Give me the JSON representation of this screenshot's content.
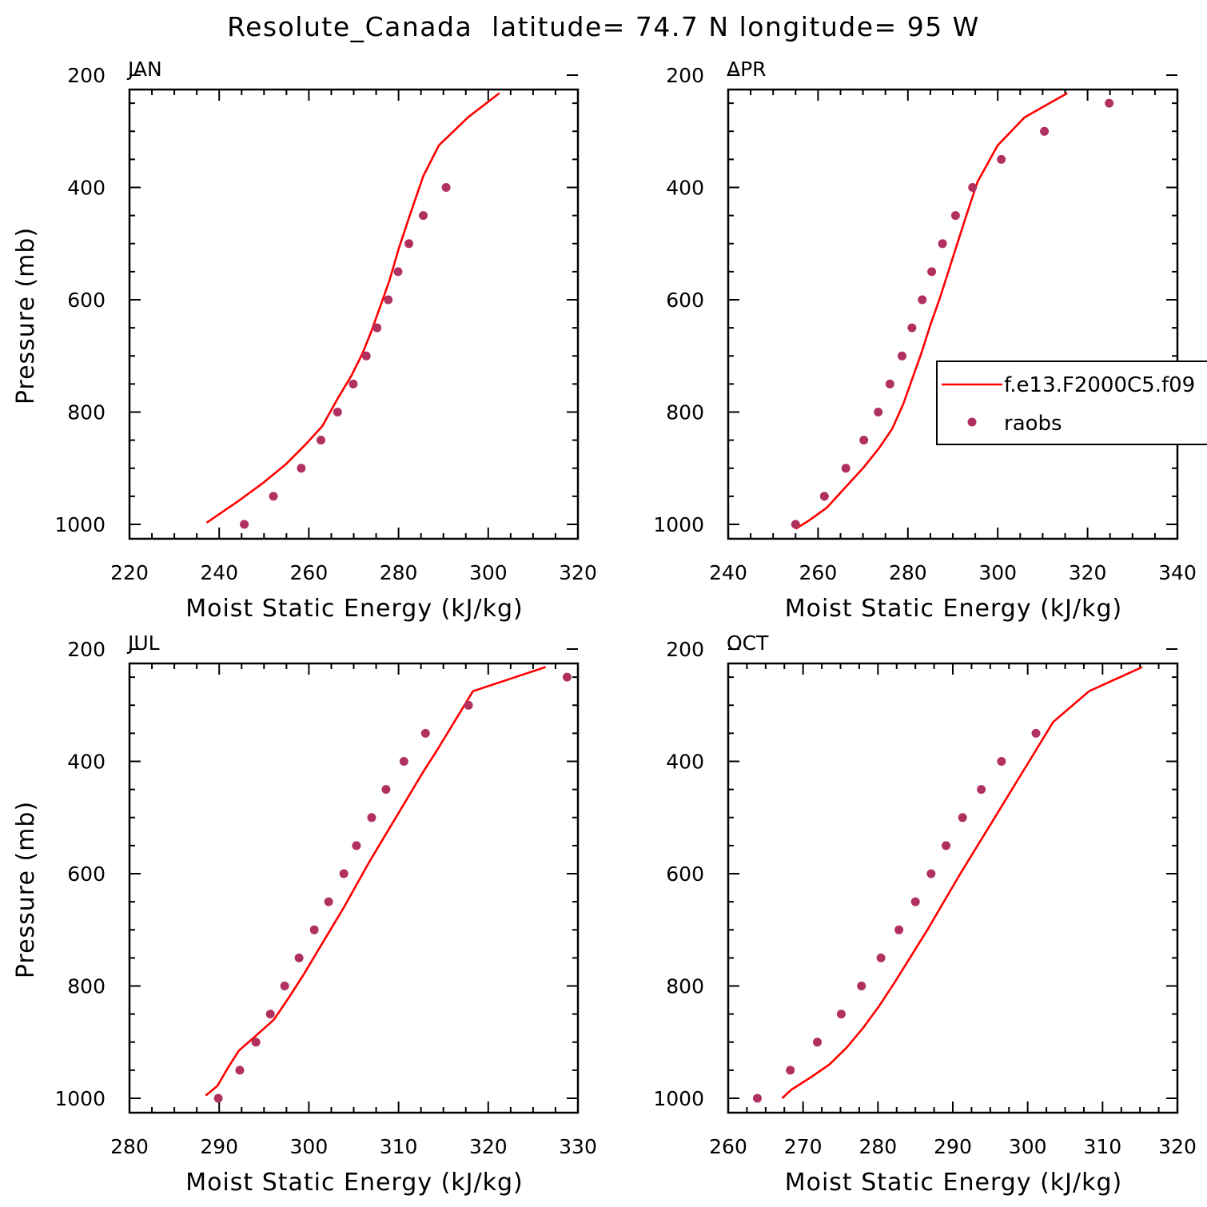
{
  "title": "Resolute_Canada  latitude= 74.7 N longitude= 95 W",
  "colors": {
    "model": "#ff0000",
    "obs": "#b03060",
    "frame": "#000000"
  },
  "legend": {
    "model_label": "f.e13.F2000C5.f09",
    "obs_label": "raobs"
  },
  "chart_data": [
    {
      "type": "line",
      "panel": "JAN",
      "xlabel": "Moist Static Energy (kJ/kg)",
      "ylabel": "Pressure (mb)",
      "xlim": [
        220,
        320
      ],
      "ylim": [
        1000,
        200
      ],
      "x_ticks": [
        220,
        240,
        260,
        280,
        300,
        320
      ],
      "y_ticks": [
        200,
        400,
        600,
        800,
        1000
      ],
      "series": [
        {
          "name": "f.e13.F2000C5.f09",
          "style": "line",
          "x": [
            237.2,
            244,
            250,
            255,
            259,
            263,
            266.5,
            269.5,
            272,
            274,
            276,
            278,
            280,
            282.5,
            285.5,
            289,
            295.5,
            302.5
          ],
          "y": [
            997,
            960,
            925,
            892,
            860,
            825,
            775,
            735,
            695,
            655,
            610,
            565,
            510,
            450,
            380,
            325,
            275,
            232
          ]
        },
        {
          "name": "raobs",
          "style": "markers",
          "x": [
            245.6,
            252.1,
            258.3,
            262.7,
            266.4,
            269.9,
            272.8,
            275.2,
            277.7,
            279.9,
            282.3,
            285.5,
            290.6
          ],
          "y": [
            1000,
            950,
            900,
            850,
            800,
            750,
            700,
            650,
            600,
            550,
            500,
            450,
            400
          ]
        }
      ]
    },
    {
      "type": "line",
      "panel": "APR",
      "xlabel": "Moist Static Energy (kJ/kg)",
      "ylabel": "",
      "xlim": [
        240,
        340
      ],
      "ylim": [
        1000,
        200
      ],
      "x_ticks": [
        240,
        260,
        280,
        300,
        320,
        340
      ],
      "y_ticks": [
        200,
        400,
        600,
        800,
        1000
      ],
      "legend_location": "right",
      "series": [
        {
          "name": "f.e13.F2000C5.f09",
          "style": "line",
          "x": [
            255,
            258,
            262,
            266,
            270,
            273.5,
            276.5,
            279,
            281,
            283,
            285,
            287,
            289,
            291,
            293,
            295.5,
            300,
            306,
            315.5
          ],
          "y": [
            1008,
            993,
            970,
            935,
            900,
            865,
            830,
            785,
            740,
            695,
            645,
            600,
            550,
            500,
            450,
            390,
            325,
            275,
            232
          ]
        },
        {
          "name": "raobs",
          "style": "markers",
          "x": [
            255,
            261.4,
            266.2,
            270.2,
            273.4,
            276,
            278.7,
            280.9,
            283.2,
            285.3,
            287.7,
            290.6,
            294.4,
            300.8,
            310.4,
            324.8
          ],
          "y": [
            1000,
            950,
            900,
            850,
            800,
            750,
            700,
            650,
            600,
            550,
            500,
            450,
            400,
            350,
            300,
            250
          ]
        }
      ]
    },
    {
      "type": "line",
      "panel": "JUL",
      "xlabel": "Moist Static Energy (kJ/kg)",
      "ylabel": "Pressure (mb)",
      "xlim": [
        280,
        330
      ],
      "ylim": [
        1000,
        200
      ],
      "x_ticks": [
        280,
        290,
        300,
        310,
        320,
        330
      ],
      "y_ticks": [
        200,
        400,
        600,
        800,
        1000
      ],
      "series": [
        {
          "name": "f.e13.F2000C5.f09",
          "style": "line",
          "x": [
            288.5,
            289.8,
            291,
            292.2,
            294,
            296.1,
            297.8,
            299.4,
            300.9,
            302.4,
            303.9,
            305.3,
            306.7,
            308.2,
            309.7,
            311.2,
            312.7,
            314.3,
            318.3,
            326.4
          ],
          "y": [
            995,
            978,
            945,
            915,
            890,
            860,
            820,
            780,
            740,
            700,
            660,
            620,
            580,
            540,
            500,
            460,
            420,
            380,
            275,
            232
          ]
        },
        {
          "name": "raobs",
          "style": "markers",
          "x": [
            289.9,
            292.3,
            294.1,
            295.7,
            297.3,
            298.9,
            300.6,
            302.2,
            303.9,
            305.3,
            307,
            308.6,
            310.6,
            313,
            317.8,
            328.8
          ],
          "y": [
            1000,
            950,
            900,
            850,
            800,
            750,
            700,
            650,
            600,
            550,
            500,
            450,
            400,
            350,
            300,
            250
          ]
        }
      ]
    },
    {
      "type": "line",
      "panel": "OCT",
      "xlabel": "Moist Static Energy (kJ/kg)",
      "ylabel": "",
      "xlim": [
        260,
        320
      ],
      "ylim": [
        1000,
        200
      ],
      "x_ticks": [
        260,
        270,
        280,
        290,
        300,
        310,
        320
      ],
      "y_ticks": [
        200,
        400,
        600,
        800,
        1000
      ],
      "series": [
        {
          "name": "f.e13.F2000C5.f09",
          "style": "line",
          "x": [
            267.2,
            268.4,
            271,
            273.5,
            275.8,
            278,
            280.2,
            282.3,
            284.5,
            286.6,
            288.8,
            291,
            293.3,
            295.6,
            297.9,
            300.2,
            303.4,
            308.2,
            315.3
          ],
          "y": [
            1000,
            985,
            963,
            940,
            910,
            875,
            835,
            792,
            745,
            700,
            650,
            600,
            550,
            500,
            450,
            400,
            330,
            275,
            232
          ]
        },
        {
          "name": "raobs",
          "style": "markers",
          "x": [
            263.9,
            268.3,
            271.9,
            275.1,
            277.8,
            280.4,
            282.8,
            285,
            287.1,
            289.1,
            291.3,
            293.8,
            296.5,
            301.1
          ],
          "y": [
            1000,
            950,
            900,
            850,
            800,
            750,
            700,
            650,
            600,
            550,
            500,
            450,
            400,
            350
          ]
        }
      ]
    }
  ]
}
